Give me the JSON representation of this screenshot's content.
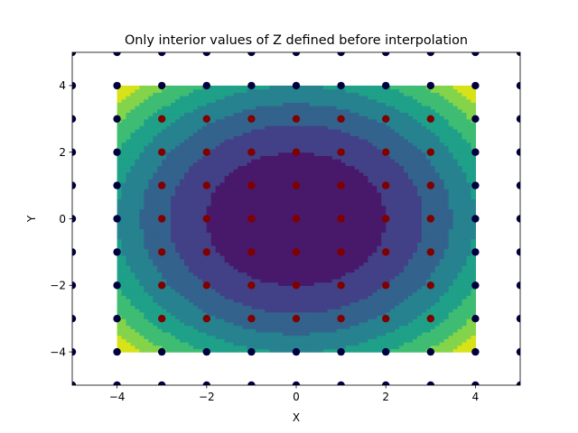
{
  "chart_data": {
    "type": "contourf-scatter",
    "title": "Only interior values of Z defined before interpolation",
    "xlabel": "X",
    "ylabel": "Y",
    "xlim": [
      -5,
      5
    ],
    "ylim": [
      -5,
      5
    ],
    "x_ticks": [
      -4,
      -2,
      0,
      2,
      4
    ],
    "y_ticks": [
      -4,
      -2,
      0,
      2,
      4
    ],
    "x_tick_labels": [
      "−4",
      "−2",
      "0",
      "2",
      "4"
    ],
    "y_tick_labels": [
      "−4",
      "−2",
      "0",
      "2",
      "4"
    ],
    "grid": false,
    "colormap": "viridis",
    "contour_region": {
      "x": [
        -4,
        4
      ],
      "y": [
        -4,
        4
      ]
    },
    "contour_levels": [
      0,
      4,
      8,
      12,
      16,
      20,
      24,
      28,
      32
    ],
    "contour_colors": [
      "#48186a",
      "#424086",
      "#33638d",
      "#26828e",
      "#1fa088",
      "#3fbc73",
      "#84d44b",
      "#d8e219"
    ],
    "grid_points": {
      "x": [
        -5,
        -4,
        -3,
        -2,
        -1,
        0,
        1,
        2,
        3,
        4,
        5
      ],
      "y": [
        -5,
        -4,
        -3,
        -2,
        -1,
        0,
        1,
        2,
        3,
        4,
        5
      ]
    },
    "interior_point_color": "#800000",
    "boundary_point_color": "#000040"
  }
}
